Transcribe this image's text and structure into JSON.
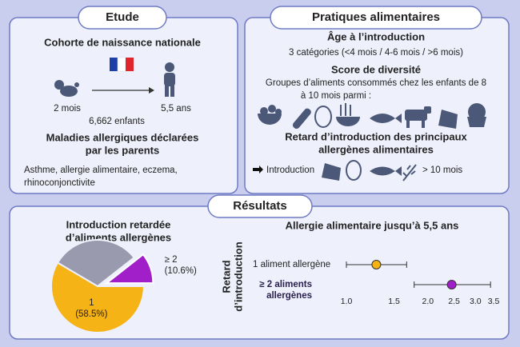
{
  "etude": {
    "title": "Etude",
    "cohort": "Cohorte de naissance nationale",
    "start": "2 mois",
    "end": "5,5 ans",
    "n": "6,662 enfants",
    "diseases_title": [
      "Maladies allergiques déclarées",
      "par les parents"
    ],
    "diseases": [
      "Asthme, allergie alimentaire, eczema,",
      "rhinoconjonctivite"
    ]
  },
  "pratiques": {
    "title": "Pratiques alimentaires",
    "age_title": "Âge à l’introduction",
    "age_text": "3 catégories (<4 mois / 4-6 mois / >6 mois)",
    "score_title": "Score de diversité",
    "score_text": [
      "Groupes d’aliments consommés chez les enfants de 8",
      "à 10 mois parmi :"
    ],
    "retard_title": [
      "Retard d’introduction des principaux",
      "allergènes alimentaires"
    ],
    "intro_label": "Introduction",
    "intro_after": ">  10 mois"
  },
  "resultats": {
    "title": "Résultats",
    "pie": {
      "type": "pie",
      "title": [
        "Introduction retardée",
        "d’aliments allergènes"
      ],
      "categories": [
        "1",
        null,
        "≥ 2"
      ],
      "values": [
        58.5,
        30.9,
        10.6
      ],
      "value_labels": [
        "(58.5%)",
        null,
        "(10.6%)"
      ],
      "colors": [
        "#f5b315",
        "#9a9aae",
        "#a01fc9"
      ]
    },
    "forest": {
      "type": "forest",
      "title": "Allergie alimentaire jusqu’à 5,5 ans",
      "ylabel": [
        "Retard",
        "d’introduction"
      ],
      "rows": [
        [
          "1 aliment allergène"
        ],
        [
          "≥ 2  aliments",
          "allergènes"
        ]
      ],
      "estimates": [
        1.29,
        2.45
      ],
      "lower": [
        1.0,
        1.78
      ],
      "upper": [
        1.67,
        3.41
      ],
      "colors": [
        "#f5b315",
        "#a01fc9"
      ],
      "xlim": [
        1.0,
        3.5
      ],
      "log": true,
      "xticks": [
        {
          "value": 1.0,
          "label": "1.0"
        },
        1.5,
        {
          "value": 2.0,
          "label": "2.0"
        },
        2.5,
        {
          "value": 3.0,
          "label": "3.0"
        },
        3.5
      ]
    }
  }
}
